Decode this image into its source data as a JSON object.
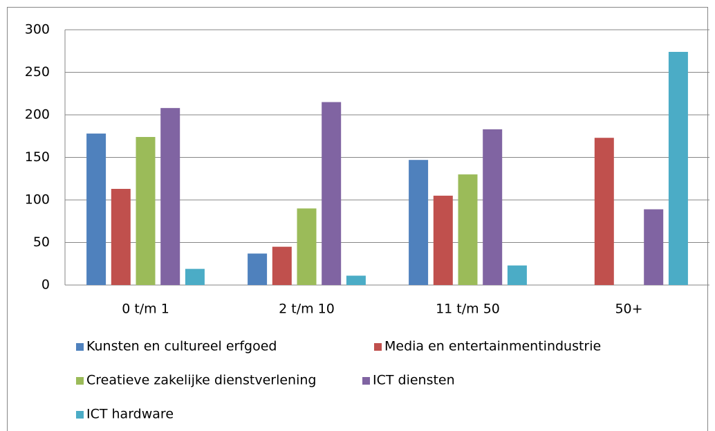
{
  "chart_data": {
    "type": "bar",
    "categories": [
      "0 t/m 1",
      "2 t/m 10",
      "11 t/m 50",
      "50+"
    ],
    "series": [
      {
        "name": "Kunsten en cultureel erfgoed",
        "color": "#4f81bd",
        "values": [
          178,
          37,
          147,
          0
        ]
      },
      {
        "name": "Media en entertainmentindustrie",
        "color": "#c0504d",
        "values": [
          113,
          45,
          105,
          173
        ]
      },
      {
        "name": "Creatieve zakelijke dienstverlening",
        "color": "#9bbb59",
        "values": [
          174,
          90,
          130,
          0
        ]
      },
      {
        "name": "ICT diensten",
        "color": "#8064a2",
        "values": [
          208,
          215,
          183,
          89
        ]
      },
      {
        "name": "ICT hardware",
        "color": "#4bacc6",
        "values": [
          19,
          11,
          23,
          274
        ]
      }
    ],
    "ylim": [
      0,
      300
    ],
    "yticks": [
      0,
      50,
      100,
      150,
      200,
      250,
      300
    ],
    "grid": true,
    "legend": "bottom"
  }
}
